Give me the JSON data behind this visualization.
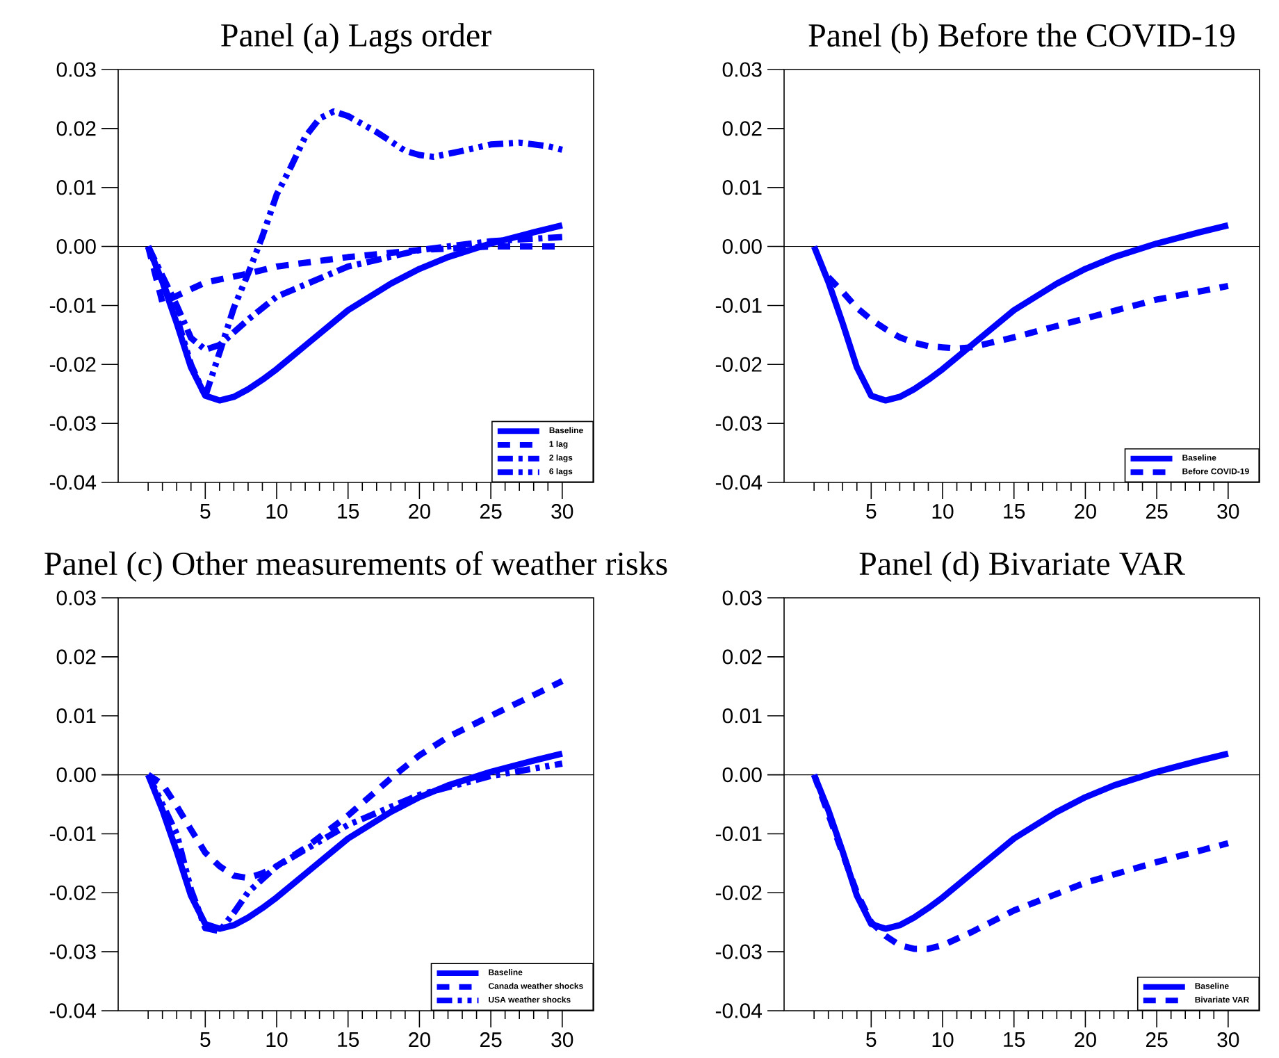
{
  "chart_data": [
    {
      "type": "line",
      "title": "Panel (a) Lags order",
      "xlim": [
        -1.1,
        32.2
      ],
      "ylim": [
        -0.04,
        0.03
      ],
      "xticks": [
        {
          "value": 1,
          "label": null
        },
        {
          "value": 2,
          "label": null
        },
        {
          "value": 3,
          "label": null
        },
        {
          "value": 4,
          "label": null
        },
        5,
        {
          "value": 6,
          "label": null
        },
        {
          "value": 7,
          "label": null
        },
        {
          "value": 8,
          "label": null
        },
        {
          "value": 9,
          "label": null
        },
        10,
        {
          "value": 11,
          "label": null
        },
        {
          "value": 12,
          "label": null
        },
        {
          "value": 13,
          "label": null
        },
        {
          "value": 14,
          "label": null
        },
        15,
        {
          "value": 16,
          "label": null
        },
        {
          "value": 17,
          "label": null
        },
        {
          "value": 18,
          "label": null
        },
        {
          "value": 19,
          "label": null
        },
        20,
        {
          "value": 21,
          "label": null
        },
        {
          "value": 22,
          "label": null
        },
        {
          "value": 23,
          "label": null
        },
        {
          "value": 24,
          "label": null
        },
        25,
        {
          "value": 26,
          "label": null
        },
        {
          "value": 27,
          "label": null
        },
        {
          "value": 28,
          "label": null
        },
        {
          "value": 29,
          "label": null
        },
        30
      ],
      "yticks": [
        {
          "value": -0.04,
          "label": "-0.04"
        },
        {
          "value": -0.03,
          "label": "-0.03"
        },
        {
          "value": -0.02,
          "label": "-0.02"
        },
        {
          "value": -0.01,
          "label": "-0.01"
        },
        {
          "value": 0,
          "label": "0.00"
        },
        {
          "value": 0.01,
          "label": "0.01"
        },
        {
          "value": 0.02,
          "label": "0.02"
        },
        {
          "value": 0.03,
          "label": "0.03"
        }
      ],
      "grid": false,
      "legend": "bottom right",
      "ref_lines": [
        {
          "axis": "y",
          "value": 0,
          "color": "#000000"
        }
      ],
      "series": [
        {
          "name": "Baseline",
          "color": "#0000ff",
          "line_style": "solid",
          "x": [
            1,
            2,
            3,
            4,
            5,
            6,
            7,
            8,
            9,
            10,
            12,
            15,
            18,
            20,
            22,
            25,
            28,
            30
          ],
          "values": [
            0,
            -0.006,
            -0.013,
            -0.0205,
            -0.0253,
            -0.0261,
            -0.0255,
            -0.0242,
            -0.0226,
            -0.0208,
            -0.0168,
            -0.0108,
            -0.0063,
            -0.0038,
            -0.0018,
            0.0005,
            0.0024,
            0.0036
          ]
        },
        {
          "name": "1 lag",
          "color": "#0000ff",
          "line_style": "dashed",
          "x": [
            1,
            2,
            5,
            8,
            10,
            15,
            20,
            25,
            30
          ],
          "values": [
            0,
            -0.0095,
            -0.0061,
            -0.0046,
            -0.0034,
            -0.0018,
            -0.0006,
            0,
            0
          ]
        },
        {
          "name": "2 lags",
          "color": "#0000ff",
          "line_style": "dashdot",
          "x": [
            1,
            3,
            4,
            5,
            6,
            8,
            10,
            15,
            20,
            25,
            30
          ],
          "values": [
            0,
            -0.01,
            -0.0155,
            -0.0175,
            -0.0167,
            -0.0124,
            -0.0085,
            -0.0034,
            -0.0006,
            0.0009,
            0.0016
          ]
        },
        {
          "name": "6 lags",
          "color": "#0000ff",
          "line_style": "dashdotdot",
          "x": [
            1,
            3,
            4,
            5,
            6,
            7,
            8,
            9,
            10,
            11,
            12,
            13,
            14,
            15,
            17,
            19,
            20,
            21,
            23,
            25,
            27,
            29,
            30
          ],
          "values": [
            0,
            -0.012,
            -0.02,
            -0.0254,
            -0.018,
            -0.0104,
            -0.0046,
            0.0017,
            0.0088,
            0.0135,
            0.0186,
            0.0217,
            0.0229,
            0.0221,
            0.0194,
            0.0162,
            0.0155,
            0.0152,
            0.0162,
            0.0173,
            0.0176,
            0.017,
            0.0164
          ]
        }
      ]
    },
    {
      "type": "line",
      "title": "Panel (b) Before the COVID-19",
      "xlim": [
        -1.1,
        32.2
      ],
      "ylim": [
        -0.04,
        0.03
      ],
      "xticks": [
        {
          "value": 1,
          "label": null
        },
        {
          "value": 2,
          "label": null
        },
        {
          "value": 3,
          "label": null
        },
        {
          "value": 4,
          "label": null
        },
        5,
        {
          "value": 6,
          "label": null
        },
        {
          "value": 7,
          "label": null
        },
        {
          "value": 8,
          "label": null
        },
        {
          "value": 9,
          "label": null
        },
        10,
        {
          "value": 11,
          "label": null
        },
        {
          "value": 12,
          "label": null
        },
        {
          "value": 13,
          "label": null
        },
        {
          "value": 14,
          "label": null
        },
        15,
        {
          "value": 16,
          "label": null
        },
        {
          "value": 17,
          "label": null
        },
        {
          "value": 18,
          "label": null
        },
        {
          "value": 19,
          "label": null
        },
        20,
        {
          "value": 21,
          "label": null
        },
        {
          "value": 22,
          "label": null
        },
        {
          "value": 23,
          "label": null
        },
        {
          "value": 24,
          "label": null
        },
        25,
        {
          "value": 26,
          "label": null
        },
        {
          "value": 27,
          "label": null
        },
        {
          "value": 28,
          "label": null
        },
        {
          "value": 29,
          "label": null
        },
        30
      ],
      "yticks": [
        {
          "value": -0.04,
          "label": "-0.04"
        },
        {
          "value": -0.03,
          "label": "-0.03"
        },
        {
          "value": -0.02,
          "label": "-0.02"
        },
        {
          "value": -0.01,
          "label": "-0.01"
        },
        {
          "value": 0,
          "label": "0.00"
        },
        {
          "value": 0.01,
          "label": "0.01"
        },
        {
          "value": 0.02,
          "label": "0.02"
        },
        {
          "value": 0.03,
          "label": "0.03"
        }
      ],
      "grid": false,
      "legend": "bottom right",
      "ref_lines": [
        {
          "axis": "y",
          "value": 0,
          "color": "#000000"
        }
      ],
      "series": [
        {
          "name": "Baseline",
          "color": "#0000ff",
          "line_style": "solid",
          "x": [
            1,
            2,
            3,
            4,
            5,
            6,
            7,
            8,
            9,
            10,
            12,
            15,
            18,
            20,
            22,
            25,
            28,
            30
          ],
          "values": [
            0,
            -0.006,
            -0.013,
            -0.0205,
            -0.0253,
            -0.0261,
            -0.0255,
            -0.0242,
            -0.0226,
            -0.0208,
            -0.0168,
            -0.0108,
            -0.0063,
            -0.0038,
            -0.0018,
            0.0005,
            0.0024,
            0.0036
          ]
        },
        {
          "name": "Before COVID-19",
          "color": "#0000ff",
          "line_style": "dashed",
          "x": [
            2,
            3,
            4,
            5,
            6,
            7,
            8,
            9,
            10,
            11,
            12,
            15,
            20,
            25,
            30
          ],
          "values": [
            -0.0052,
            -0.0077,
            -0.0104,
            -0.0124,
            -0.014,
            -0.0154,
            -0.0163,
            -0.0169,
            -0.0171,
            -0.0173,
            -0.0171,
            -0.0154,
            -0.0122,
            -0.009,
            -0.0067
          ]
        }
      ]
    },
    {
      "type": "line",
      "title": "Panel (c) Other measurements of weather risks",
      "xlim": [
        -1.1,
        32.2
      ],
      "ylim": [
        -0.04,
        0.03
      ],
      "xticks": [
        {
          "value": 1,
          "label": null
        },
        {
          "value": 2,
          "label": null
        },
        {
          "value": 3,
          "label": null
        },
        {
          "value": 4,
          "label": null
        },
        5,
        {
          "value": 6,
          "label": null
        },
        {
          "value": 7,
          "label": null
        },
        {
          "value": 8,
          "label": null
        },
        {
          "value": 9,
          "label": null
        },
        10,
        {
          "value": 11,
          "label": null
        },
        {
          "value": 12,
          "label": null
        },
        {
          "value": 13,
          "label": null
        },
        {
          "value": 14,
          "label": null
        },
        15,
        {
          "value": 16,
          "label": null
        },
        {
          "value": 17,
          "label": null
        },
        {
          "value": 18,
          "label": null
        },
        {
          "value": 19,
          "label": null
        },
        20,
        {
          "value": 21,
          "label": null
        },
        {
          "value": 22,
          "label": null
        },
        {
          "value": 23,
          "label": null
        },
        {
          "value": 24,
          "label": null
        },
        25,
        {
          "value": 26,
          "label": null
        },
        {
          "value": 27,
          "label": null
        },
        {
          "value": 28,
          "label": null
        },
        {
          "value": 29,
          "label": null
        },
        30
      ],
      "yticks": [
        {
          "value": -0.04,
          "label": "-0.04"
        },
        {
          "value": -0.03,
          "label": "-0.03"
        },
        {
          "value": -0.02,
          "label": "-0.02"
        },
        {
          "value": -0.01,
          "label": "-0.01"
        },
        {
          "value": 0,
          "label": "0.00"
        },
        {
          "value": 0.01,
          "label": "0.01"
        },
        {
          "value": 0.02,
          "label": "0.02"
        },
        {
          "value": 0.03,
          "label": "0.03"
        }
      ],
      "grid": false,
      "legend": "bottom right",
      "ref_lines": [
        {
          "axis": "y",
          "value": 0,
          "color": "#000000"
        }
      ],
      "series": [
        {
          "name": "Baseline",
          "color": "#0000ff",
          "line_style": "solid",
          "x": [
            1,
            2,
            3,
            4,
            5,
            6,
            7,
            8,
            9,
            10,
            12,
            15,
            18,
            20,
            22,
            25,
            28,
            30
          ],
          "values": [
            0,
            -0.006,
            -0.013,
            -0.0205,
            -0.0253,
            -0.0261,
            -0.0255,
            -0.0242,
            -0.0226,
            -0.0208,
            -0.0168,
            -0.0108,
            -0.0063,
            -0.0038,
            -0.0018,
            0.0005,
            0.0024,
            0.0036
          ]
        },
        {
          "name": "Canada weather shocks",
          "color": "#0000ff",
          "line_style": "dashed",
          "x": [
            1,
            2,
            3,
            4,
            5,
            6,
            7,
            8,
            9,
            10,
            12,
            15,
            18,
            20,
            22,
            25,
            28,
            30
          ],
          "values": [
            0,
            -0.0016,
            -0.0053,
            -0.0093,
            -0.0132,
            -0.0155,
            -0.0171,
            -0.0175,
            -0.0167,
            -0.0155,
            -0.0124,
            -0.0069,
            -0.0006,
            0.0033,
            0.0064,
            0.01,
            0.0135,
            0.0159
          ]
        },
        {
          "name": "USA weather shocks",
          "color": "#0000ff",
          "line_style": "dashdotdot",
          "x": [
            1,
            3,
            4,
            5,
            6,
            7,
            8,
            10,
            15,
            20,
            25,
            30
          ],
          "values": [
            0,
            -0.01,
            -0.0195,
            -0.026,
            -0.0265,
            -0.0234,
            -0.0199,
            -0.0155,
            -0.0085,
            -0.0034,
            -0.0002,
            0.0019
          ]
        }
      ]
    },
    {
      "type": "line",
      "title": "Panel (d) Bivariate VAR",
      "xlim": [
        -1.1,
        32.2
      ],
      "ylim": [
        -0.04,
        0.03
      ],
      "xticks": [
        {
          "value": 1,
          "label": null
        },
        {
          "value": 2,
          "label": null
        },
        {
          "value": 3,
          "label": null
        },
        {
          "value": 4,
          "label": null
        },
        5,
        {
          "value": 6,
          "label": null
        },
        {
          "value": 7,
          "label": null
        },
        {
          "value": 8,
          "label": null
        },
        {
          "value": 9,
          "label": null
        },
        10,
        {
          "value": 11,
          "label": null
        },
        {
          "value": 12,
          "label": null
        },
        {
          "value": 13,
          "label": null
        },
        {
          "value": 14,
          "label": null
        },
        15,
        {
          "value": 16,
          "label": null
        },
        {
          "value": 17,
          "label": null
        },
        {
          "value": 18,
          "label": null
        },
        {
          "value": 19,
          "label": null
        },
        20,
        {
          "value": 21,
          "label": null
        },
        {
          "value": 22,
          "label": null
        },
        {
          "value": 23,
          "label": null
        },
        {
          "value": 24,
          "label": null
        },
        25,
        {
          "value": 26,
          "label": null
        },
        {
          "value": 27,
          "label": null
        },
        {
          "value": 28,
          "label": null
        },
        {
          "value": 29,
          "label": null
        },
        30
      ],
      "yticks": [
        {
          "value": -0.04,
          "label": "-0.04"
        },
        {
          "value": -0.03,
          "label": "-0.03"
        },
        {
          "value": -0.02,
          "label": "-0.02"
        },
        {
          "value": -0.01,
          "label": "-0.01"
        },
        {
          "value": 0,
          "label": "0.00"
        },
        {
          "value": 0.01,
          "label": "0.01"
        },
        {
          "value": 0.02,
          "label": "0.02"
        },
        {
          "value": 0.03,
          "label": "0.03"
        }
      ],
      "grid": false,
      "legend": "bottom right",
      "ref_lines": [
        {
          "axis": "y",
          "value": 0,
          "color": "#000000"
        }
      ],
      "series": [
        {
          "name": "Baseline",
          "color": "#0000ff",
          "line_style": "solid",
          "x": [
            1,
            2,
            3,
            4,
            5,
            6,
            7,
            8,
            9,
            10,
            12,
            15,
            18,
            20,
            22,
            25,
            28,
            30
          ],
          "values": [
            0,
            -0.006,
            -0.013,
            -0.0205,
            -0.0253,
            -0.0261,
            -0.0255,
            -0.0242,
            -0.0226,
            -0.0208,
            -0.0168,
            -0.0108,
            -0.0063,
            -0.0038,
            -0.0018,
            0.0005,
            0.0024,
            0.0036
          ]
        },
        {
          "name": "Bivariate VAR",
          "color": "#0000ff",
          "line_style": "dashed",
          "x": [
            1,
            4,
            5,
            6,
            7,
            8,
            9,
            10,
            12,
            15,
            20,
            25,
            30
          ],
          "values": [
            0,
            -0.02,
            -0.025,
            -0.0273,
            -0.0289,
            -0.0295,
            -0.0295,
            -0.0289,
            -0.0267,
            -0.023,
            -0.0183,
            -0.0148,
            -0.0116
          ]
        }
      ]
    }
  ]
}
